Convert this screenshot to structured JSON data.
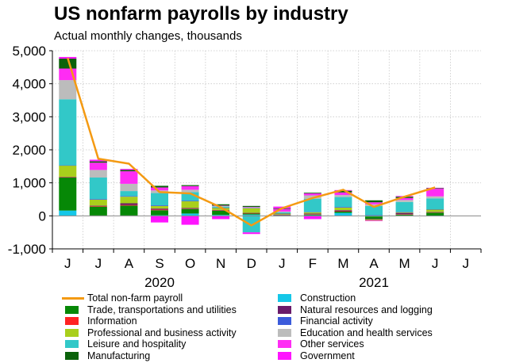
{
  "title": "US nonfarm payrolls by industry",
  "subtitle": "Actual monthly changes, thousands",
  "chart_data": {
    "type": "bar",
    "stacked": true,
    "title": "US nonfarm payrolls by industry",
    "subtitle": "Actual monthly changes, thousands",
    "categories": [
      "J",
      "J",
      "A",
      "S",
      "O",
      "N",
      "D",
      "J",
      "F",
      "M",
      "A",
      "M",
      "J",
      "J"
    ],
    "year_labels": [
      {
        "label": "2020",
        "start": 0,
        "end": 6
      },
      {
        "label": "2021",
        "start": 7,
        "end": 13
      }
    ],
    "ylim": [
      -1000,
      5000
    ],
    "yticks": [
      -1000,
      0,
      1000,
      2000,
      3000,
      4000,
      5000
    ],
    "ytick_labels": [
      "-1,000",
      "0",
      "1,000",
      "2,000",
      "3,000",
      "4,000",
      "5,000"
    ],
    "grid": true,
    "legend_position": "bottom",
    "series": [
      {
        "name": "Construction",
        "color": "#15c7e8",
        "values": [
          160,
          10,
          10,
          20,
          70,
          30,
          40,
          20,
          20,
          90,
          -20,
          10,
          -10,
          null
        ]
      },
      {
        "name": "Trade, transportations and utilities",
        "color": "#068806",
        "values": [
          1000,
          270,
          300,
          150,
          140,
          130,
          30,
          -10,
          20,
          40,
          -70,
          30,
          100,
          null
        ]
      },
      {
        "name": "Information",
        "color": "#ff2222",
        "values": [
          10,
          20,
          20,
          20,
          10,
          10,
          10,
          10,
          10,
          10,
          10,
          10,
          10,
          null
        ]
      },
      {
        "name": "Natural resources and logging",
        "color": "#6a1a6a",
        "values": [
          10,
          10,
          50,
          30,
          20,
          10,
          10,
          10,
          20,
          30,
          -20,
          40,
          10,
          null
        ]
      },
      {
        "name": "Professional and business activity",
        "color": "#a9cf1c",
        "values": [
          340,
          180,
          200,
          80,
          200,
          60,
          140,
          30,
          40,
          80,
          -30,
          20,
          70,
          null
        ]
      },
      {
        "name": "Financial activity",
        "color": "#3b5bdb",
        "values": [
          10,
          20,
          20,
          20,
          20,
          10,
          10,
          10,
          10,
          20,
          10,
          10,
          10,
          null
        ]
      },
      {
        "name": "Leisure and hospitality",
        "color": "#32c8c8",
        "values": [
          2000,
          650,
          150,
          370,
          260,
          30,
          -500,
          30,
          400,
          300,
          280,
          300,
          330,
          null
        ]
      },
      {
        "name": "Education and health services",
        "color": "#bcbcbc",
        "values": [
          580,
          230,
          220,
          80,
          70,
          20,
          20,
          20,
          100,
          60,
          50,
          60,
          60,
          null
        ]
      },
      {
        "name": "Other services",
        "color": "#ff2cf4",
        "values": [
          350,
          220,
          380,
          90,
          110,
          10,
          10,
          80,
          60,
          80,
          60,
          60,
          230,
          null
        ]
      },
      {
        "name": "Manufacturing",
        "color": "#0b620b",
        "values": [
          300,
          40,
          40,
          50,
          30,
          40,
          30,
          20,
          20,
          50,
          60,
          40,
          20,
          null
        ]
      },
      {
        "name": "Government",
        "color": "#ff14ff",
        "values": [
          50,
          50,
          30,
          -200,
          -270,
          -100,
          -50,
          50,
          -100,
          20,
          -20,
          20,
          10,
          null
        ]
      }
    ],
    "total_line": {
      "name": "Total non-farm payroll",
      "color": "#f49a12",
      "values": [
        4780,
        1730,
        1580,
        720,
        680,
        260,
        -290,
        230,
        540,
        790,
        270,
        580,
        860,
        null
      ]
    }
  },
  "legend": {
    "left": [
      {
        "label": "Total non-farm payroll",
        "color": "#f49a12",
        "kind": "line"
      },
      {
        "label": "Trade, transportations and utilities",
        "color": "#068806",
        "kind": "box"
      },
      {
        "label": "Information",
        "color": "#ff2222",
        "kind": "box"
      },
      {
        "label": "Professional and business activity",
        "color": "#a9cf1c",
        "kind": "box"
      },
      {
        "label": "Leisure and hospitality",
        "color": "#32c8c8",
        "kind": "box"
      },
      {
        "label": "Manufacturing",
        "color": "#0b620b",
        "kind": "box"
      }
    ],
    "right": [
      {
        "label": "Construction",
        "color": "#15c7e8",
        "kind": "box"
      },
      {
        "label": "Natural resources and logging",
        "color": "#6a1a6a",
        "kind": "box"
      },
      {
        "label": "Financial activity",
        "color": "#3b5bdb",
        "kind": "box"
      },
      {
        "label": "Education and health services",
        "color": "#bcbcbc",
        "kind": "box"
      },
      {
        "label": "Other services",
        "color": "#ff2cf4",
        "kind": "box"
      },
      {
        "label": "Government",
        "color": "#ff14ff",
        "kind": "box"
      }
    ]
  }
}
